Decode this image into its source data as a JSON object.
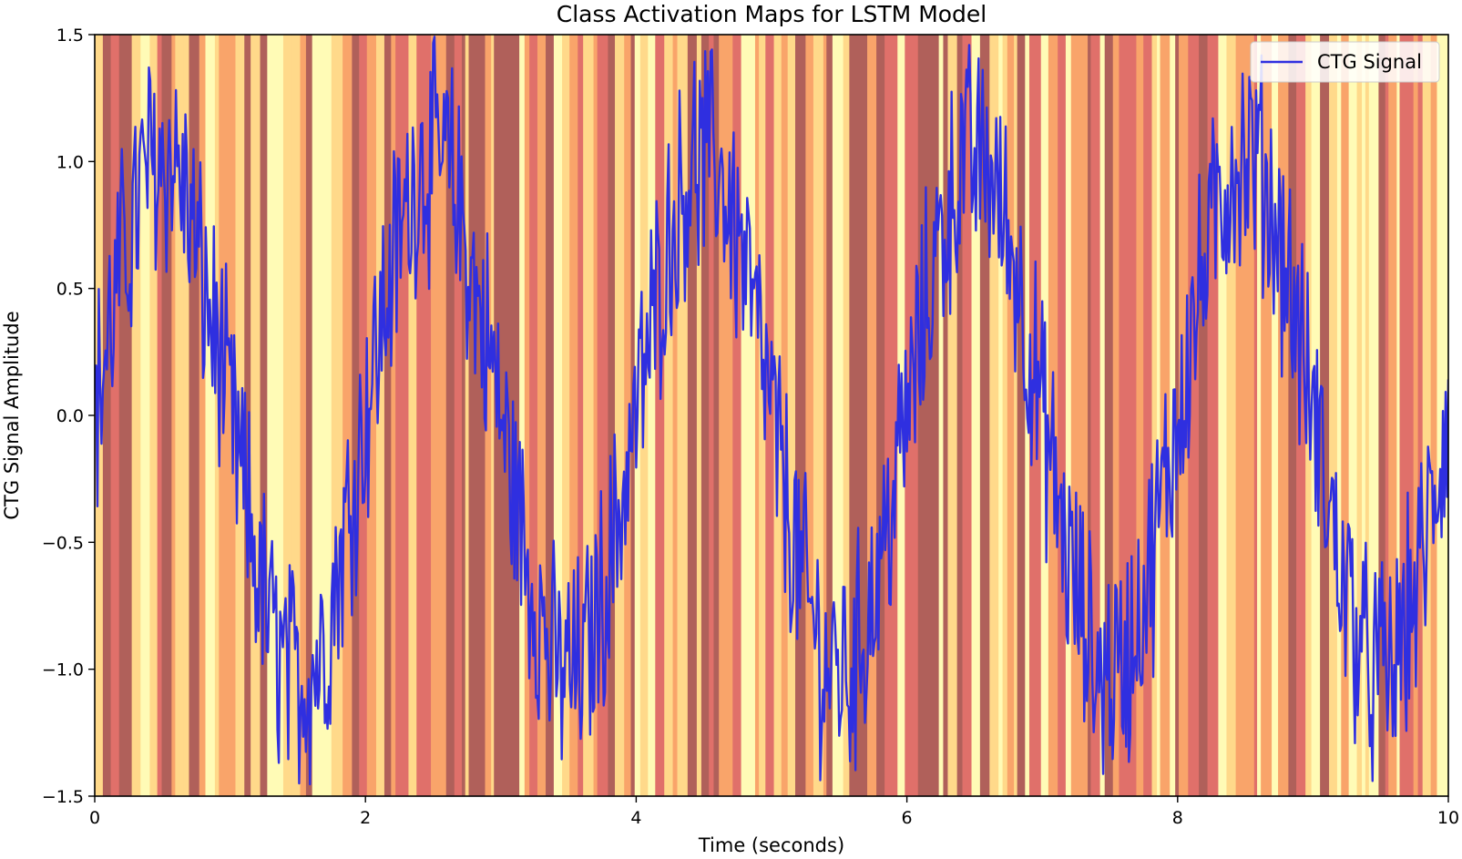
{
  "chart_data": {
    "type": "line",
    "title": "Class Activation Maps for LSTM Model",
    "xlabel": "Time (seconds)",
    "ylabel": "CTG Signal Amplitude",
    "xlim": [
      0,
      10
    ],
    "ylim": [
      -1.5,
      1.5
    ],
    "x_ticks": [
      0,
      2,
      4,
      6,
      8,
      10
    ],
    "x_tick_labels": [
      "0",
      "2",
      "4",
      "6",
      "8",
      "10"
    ],
    "y_ticks": [
      -1.5,
      -1.0,
      -0.5,
      0.0,
      0.5,
      1.0,
      1.5
    ],
    "y_tick_labels": [
      "−1.5",
      "−1.0",
      "−0.5",
      "0.0",
      "0.5",
      "1.0",
      "1.5"
    ],
    "grid": false,
    "legend_position": "top-right",
    "series": [
      {
        "name": "CTG Signal",
        "color": "#2f2fe0",
        "x": [
          0.0,
          0.1,
          0.2,
          0.3,
          0.4,
          0.5,
          0.6,
          0.7,
          0.8,
          0.9,
          1.0,
          1.1,
          1.2,
          1.3,
          1.4,
          1.5,
          1.6,
          1.7,
          1.8,
          1.9,
          2.0,
          2.1,
          2.2,
          2.3,
          2.4,
          2.5,
          2.6,
          2.7,
          2.8,
          2.9,
          3.0,
          3.1,
          3.2,
          3.3,
          3.4,
          3.5,
          3.6,
          3.7,
          3.8,
          3.9,
          4.0,
          4.1,
          4.2,
          4.3,
          4.4,
          4.5,
          4.6,
          4.7,
          4.8,
          4.9,
          5.0,
          5.1,
          5.2,
          5.3,
          5.4,
          5.5,
          5.6,
          5.7,
          5.8,
          5.9,
          6.0,
          6.1,
          6.2,
          6.3,
          6.4,
          6.5,
          6.6,
          6.7,
          6.8,
          6.9,
          7.0,
          7.1,
          7.2,
          7.3,
          7.4,
          7.5,
          7.6,
          7.7,
          7.8,
          7.9,
          8.0,
          8.1,
          8.2,
          8.3,
          8.4,
          8.5,
          8.6,
          8.7,
          8.8,
          8.9,
          9.0,
          9.1,
          9.2,
          9.3,
          9.4,
          9.5,
          9.6,
          9.7,
          9.8,
          9.9,
          10.0
        ],
        "y": [
          0.0,
          0.3,
          0.6,
          0.8,
          1.0,
          1.0,
          1.0,
          0.8,
          0.5,
          0.3,
          0.0,
          -0.3,
          -0.6,
          -0.85,
          -1.0,
          -1.05,
          -1.0,
          -0.9,
          -0.6,
          -0.3,
          0.0,
          0.3,
          0.6,
          0.8,
          1.0,
          1.0,
          1.0,
          0.8,
          0.5,
          0.3,
          0.0,
          -0.3,
          -0.6,
          -0.8,
          -1.0,
          -1.0,
          -1.0,
          -0.8,
          -0.6,
          -0.3,
          0.0,
          0.3,
          0.6,
          0.8,
          1.0,
          1.0,
          1.0,
          0.8,
          0.6,
          0.3,
          0.0,
          -0.3,
          -0.6,
          -0.8,
          -1.0,
          -1.0,
          -1.0,
          -0.8,
          -0.6,
          -0.3,
          0.0,
          0.3,
          0.6,
          0.8,
          1.0,
          1.0,
          1.0,
          0.8,
          0.6,
          0.3,
          0.0,
          -0.3,
          -0.6,
          -0.8,
          -1.0,
          -1.0,
          -1.0,
          -0.8,
          -0.6,
          -0.3,
          0.0,
          0.3,
          0.6,
          0.8,
          1.0,
          1.0,
          1.0,
          0.8,
          0.6,
          0.3,
          0.0,
          -0.3,
          -0.6,
          -0.8,
          -1.0,
          -1.0,
          -1.0,
          -0.8,
          -0.6,
          -0.3,
          0.0
        ]
      }
    ],
    "heatmap_background": {
      "description": "vertical class activation bands",
      "colormap": [
        "#fffbb6",
        "#ffd98a",
        "#f9a46a",
        "#e0706a",
        "#b0605a"
      ]
    }
  }
}
